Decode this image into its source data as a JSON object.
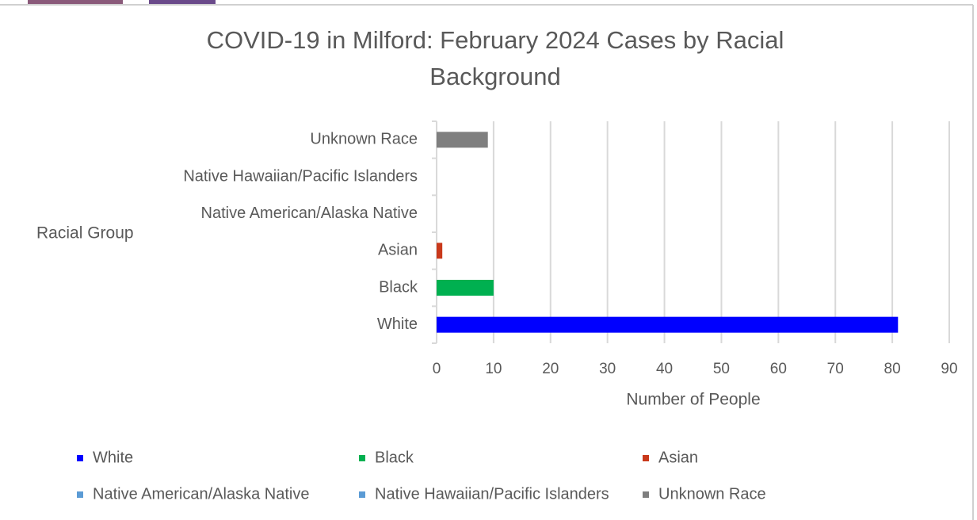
{
  "chart_data": {
    "type": "bar",
    "orientation": "horizontal",
    "title": "COVID-19 in Milford: February 2024 Cases by Racial Background",
    "x_label": "Number of People",
    "y_label": "Racial Group",
    "categories": [
      "White",
      "Black",
      "Asian",
      "Native American/Alaska Native",
      "Native Hawaiian/Pacific Islanders",
      "Unknown Race"
    ],
    "values": [
      81,
      10,
      1,
      0,
      0,
      9
    ],
    "colors": [
      "#0000ff",
      "#00b050",
      "#c9391b",
      "#5b9bd5",
      "#5b9bd5",
      "#7f7f7f"
    ],
    "xlim": [
      0,
      90
    ],
    "xticks": [
      0,
      10,
      20,
      30,
      40,
      50,
      60,
      70,
      80,
      90
    ],
    "grid": true,
    "legend": "bottom"
  }
}
